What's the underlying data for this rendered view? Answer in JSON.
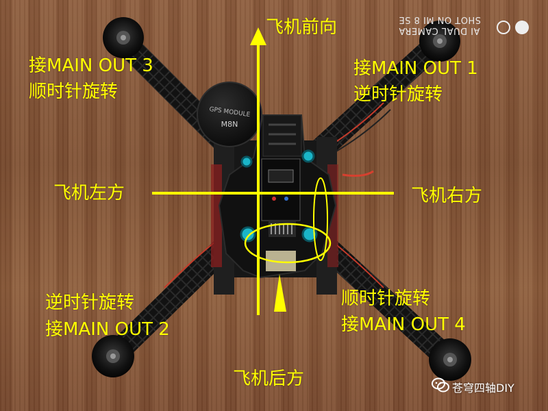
{
  "labels": {
    "front": "飞机前向",
    "back": "飞机后方",
    "left": "飞机左方",
    "right": "飞机右方",
    "top_left_line1": "接MAIN OUT 3",
    "top_left_line2": "顺时针旋转",
    "top_right_line1": "接MAIN OUT 1",
    "top_right_line2": "逆时针旋转",
    "bottom_left_line1": "逆时针旋转",
    "bottom_left_line2": "接MAIN OUT 2",
    "bottom_right_line1": "顺时针旋转",
    "bottom_right_line2": "接MAIN OUT 4"
  },
  "gps_module": {
    "line1": "GPS MODULE",
    "line2": "M8N"
  },
  "camera_watermark": {
    "line1": "AI DUAL CAMERA",
    "line2": "SHOT ON MI 8 SE"
  },
  "watermark": {
    "text": "苍穹四轴DIY"
  },
  "colors": {
    "annotation": "#ffff00",
    "wood": "#8a5a3b",
    "frame": "#1a1a1a"
  }
}
